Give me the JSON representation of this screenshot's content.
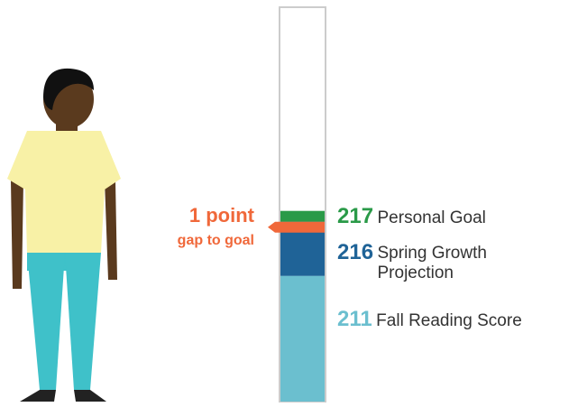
{
  "chart_data": {
    "type": "bar",
    "series": [
      {
        "name": "Fall Reading Score",
        "color": "#6bbfcf",
        "values": [
          211
        ]
      },
      {
        "name": "Spring Growth Projection",
        "color": "#1f6397",
        "values": [
          216
        ]
      },
      {
        "name": "Personal Goal",
        "color": "#2a9a48",
        "values": [
          217
        ]
      }
    ],
    "ylim": [
      199.4,
      235.8
    ],
    "annotations": [
      "1 point",
      "gap to goal"
    ],
    "annotation_color": "#f0683a"
  }
}
